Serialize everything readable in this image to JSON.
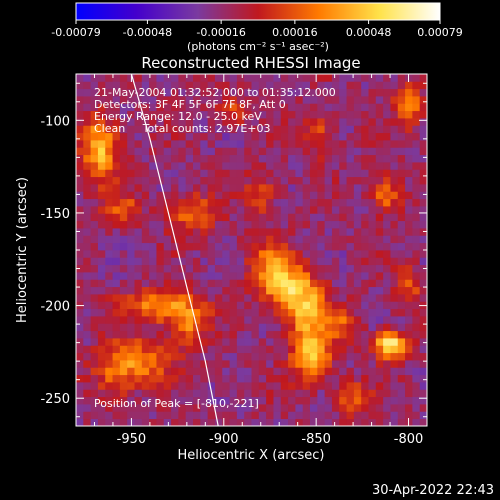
{
  "chart_data": {
    "type": "heatmap",
    "title": "Reconstructed RHESSI Image",
    "xlabel": "Heliocentric X (arcsec)",
    "ylabel": "Heliocentric Y (arcsec)",
    "xlim": [
      -980,
      -790
    ],
    "ylim": [
      -265,
      -75
    ],
    "x_ticks": [
      -950,
      -900,
      -850,
      -800
    ],
    "x_tick_labels": [
      "-950",
      "-900",
      "-850",
      "-800"
    ],
    "y_ticks": [
      -100,
      -150,
      -200,
      -250
    ],
    "y_tick_labels": [
      "-100",
      "-150",
      "-200",
      "-250"
    ],
    "colorbar": {
      "range": [
        -0.00079,
        0.00079
      ],
      "ticks": [
        -0.00079,
        -0.00048,
        -0.00016,
        0.00016,
        0.00048,
        0.00079
      ],
      "tick_labels": [
        "-0.00079",
        "-0.00048",
        "-0.00016",
        "0.00016",
        "0.00048",
        "0.00079"
      ],
      "unit_text": "(photons cm⁻² s⁻¹ asec⁻²)",
      "colors": [
        "#0000ff",
        "#4400cc",
        "#7a3aa0",
        "#c0181f",
        "#ff7a00",
        "#ffe24a",
        "#ffffff"
      ]
    },
    "annotations": [
      "21-May-2004 01:32:52.000 to 01:35:12.000",
      "Detectors: 3F 4F 5F 6F 7F 8F, Att 0",
      "Energy Range: 12.0 - 25.0 keV",
      "Clean     Total counts: 2.97E+03"
    ],
    "peak_label": "Position of Peak = [-810,-221]",
    "peak": [
      -810,
      -221
    ],
    "limb_curve": [
      [
        -950,
        -75
      ],
      [
        -940,
        -110
      ],
      [
        -930,
        -150
      ],
      [
        -920,
        -190
      ],
      [
        -910,
        -230
      ],
      [
        -903,
        -265
      ]
    ],
    "sources": [
      {
        "x": -967,
        "y": -115,
        "amp": 0.0006,
        "sx": 7,
        "sy": 12
      },
      {
        "x": -955,
        "y": -148,
        "amp": 0.0003,
        "sx": 7,
        "sy": 6
      },
      {
        "x": -918,
        "y": -150,
        "amp": 0.00038,
        "sx": 9,
        "sy": 7
      },
      {
        "x": -935,
        "y": -200,
        "amp": 0.00045,
        "sx": 14,
        "sy": 6
      },
      {
        "x": -920,
        "y": -210,
        "amp": 0.0004,
        "sx": 8,
        "sy": 8
      },
      {
        "x": -945,
        "y": -230,
        "amp": 0.00042,
        "sx": 12,
        "sy": 8
      },
      {
        "x": -960,
        "y": -238,
        "amp": 0.0003,
        "sx": 8,
        "sy": 10
      },
      {
        "x": -880,
        "y": -140,
        "amp": 0.0003,
        "sx": 6,
        "sy": 8
      },
      {
        "x": -875,
        "y": -175,
        "amp": 0.00035,
        "sx": 8,
        "sy": 8
      },
      {
        "x": -868,
        "y": -190,
        "amp": 0.00055,
        "sx": 9,
        "sy": 8
      },
      {
        "x": -855,
        "y": -205,
        "amp": 0.00058,
        "sx": 8,
        "sy": 14
      },
      {
        "x": -852,
        "y": -230,
        "amp": 0.0005,
        "sx": 7,
        "sy": 8
      },
      {
        "x": -835,
        "y": -210,
        "amp": 0.0003,
        "sx": 6,
        "sy": 6
      },
      {
        "x": -810,
        "y": -221,
        "amp": 0.00079,
        "sx": 6,
        "sy": 5
      },
      {
        "x": -800,
        "y": -92,
        "amp": 0.00045,
        "sx": 5,
        "sy": 9
      },
      {
        "x": -812,
        "y": -140,
        "amp": 0.00042,
        "sx": 6,
        "sy": 7
      },
      {
        "x": -848,
        "y": -108,
        "amp": 0.00032,
        "sx": 6,
        "sy": 8
      },
      {
        "x": -800,
        "y": -190,
        "amp": 0.0003,
        "sx": 5,
        "sy": 8
      },
      {
        "x": -895,
        "y": -95,
        "amp": 0.0003,
        "sx": 6,
        "sy": 5
      },
      {
        "x": -830,
        "y": -250,
        "amp": 0.00035,
        "sx": 7,
        "sy": 6
      }
    ]
  },
  "footer": {
    "timestamp": "30-Apr-2022 22:43"
  }
}
